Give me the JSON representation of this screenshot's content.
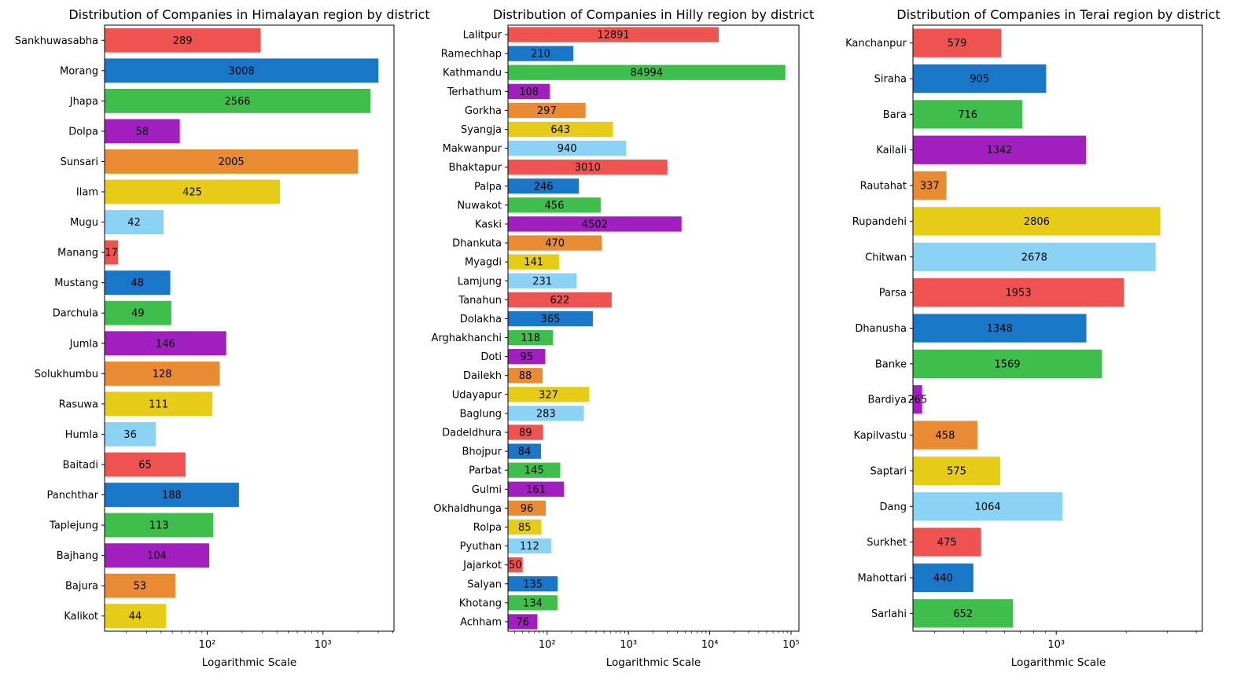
{
  "chart_data": [
    {
      "type": "bar",
      "orientation": "horizontal",
      "title": "Distribution of Companies in Himalayan region by district",
      "xlabel": "Logarithmic Scale",
      "ylabel": "",
      "xscale": "log",
      "xlim": [
        13,
        4100
      ],
      "xticks": [
        {
          "value": 100,
          "label": "10²"
        },
        {
          "value": 1000,
          "label": "10³"
        }
      ],
      "grid": false,
      "categories": [
        "Sankhuwasabha",
        "Morang",
        "Jhapa",
        "Dolpa",
        "Sunsari",
        "Ilam",
        "Mugu",
        "Manang",
        "Mustang",
        "Darchula",
        "Jumla",
        "Solukhumbu",
        "Rasuwa",
        "Humla",
        "Baitadi",
        "Panchthar",
        "Taplejung",
        "Bajhang",
        "Bajura",
        "Kalikot"
      ],
      "values": [
        289,
        3008,
        2566,
        58,
        2005,
        425,
        42,
        17,
        48,
        49,
        146,
        128,
        111,
        36,
        65,
        188,
        113,
        104,
        53,
        44
      ],
      "colors": [
        "#ef534f",
        "#1976c8",
        "#3fbe4b",
        "#a11fbf",
        "#e88b32",
        "#e6cb17",
        "#8bd3f5"
      ]
    },
    {
      "type": "bar",
      "orientation": "horizontal",
      "title": "Distribution of Companies in Hilly region by district",
      "xlabel": "Logarithmic Scale",
      "ylabel": "",
      "xscale": "log",
      "xlim": [
        33,
        125000
      ],
      "xticks": [
        {
          "value": 100,
          "label": "10²"
        },
        {
          "value": 1000,
          "label": "10³"
        },
        {
          "value": 10000,
          "label": "10⁴"
        },
        {
          "value": 100000,
          "label": "10⁵"
        }
      ],
      "grid": false,
      "categories": [
        "Lalitpur",
        "Ramechhap",
        "Kathmandu",
        "Terhathum",
        "Gorkha",
        "Syangja",
        "Makwanpur",
        "Bhaktapur",
        "Palpa",
        "Nuwakot",
        "Kaski",
        "Dhankuta",
        "Myagdi",
        "Lamjung",
        "Tanahun",
        "Dolakha",
        "Arghakhanchi",
        "Doti",
        "Dailekh",
        "Udayapur",
        "Baglung",
        "Dadeldhura",
        "Bhojpur",
        "Parbat",
        "Gulmi",
        "Okhaldhunga",
        "Rolpa",
        "Pyuthan",
        "Jajarkot",
        "Salyan",
        "Khotang",
        "Achham"
      ],
      "values": [
        12891,
        210,
        84994,
        108,
        297,
        643,
        940,
        3010,
        246,
        456,
        4502,
        470,
        141,
        231,
        622,
        365,
        118,
        95,
        88,
        327,
        283,
        89,
        84,
        145,
        161,
        96,
        85,
        112,
        50,
        135,
        134,
        76
      ],
      "colors": [
        "#ef534f",
        "#1976c8",
        "#3fbe4b",
        "#a11fbf",
        "#e88b32",
        "#e6cb17",
        "#8bd3f5"
      ]
    },
    {
      "type": "bar",
      "orientation": "horizontal",
      "title": "Distribution of Companies in Terai region by district",
      "xlabel": "Logarithmic Scale",
      "ylabel": "",
      "xscale": "log",
      "xlim": [
        242,
        4250
      ],
      "xticks": [
        {
          "value": 1000,
          "label": "10³"
        }
      ],
      "grid": false,
      "categories": [
        "Kanchanpur",
        "Siraha",
        "Bara",
        "Kailali",
        "Rautahat",
        "Rupandehi",
        "Chitwan",
        "Parsa",
        "Dhanusha",
        "Banke",
        "Bardiya",
        "Kapilvastu",
        "Saptari",
        "Dang",
        "Surkhet",
        "Mahottari",
        "Sarlahi"
      ],
      "values": [
        579,
        905,
        716,
        1342,
        337,
        2806,
        2678,
        1953,
        1348,
        1569,
        265,
        458,
        575,
        1064,
        475,
        440,
        652
      ],
      "colors": [
        "#ef534f",
        "#1976c8",
        "#3fbe4b",
        "#a11fbf",
        "#e88b32",
        "#e6cb17",
        "#8bd3f5"
      ]
    }
  ]
}
